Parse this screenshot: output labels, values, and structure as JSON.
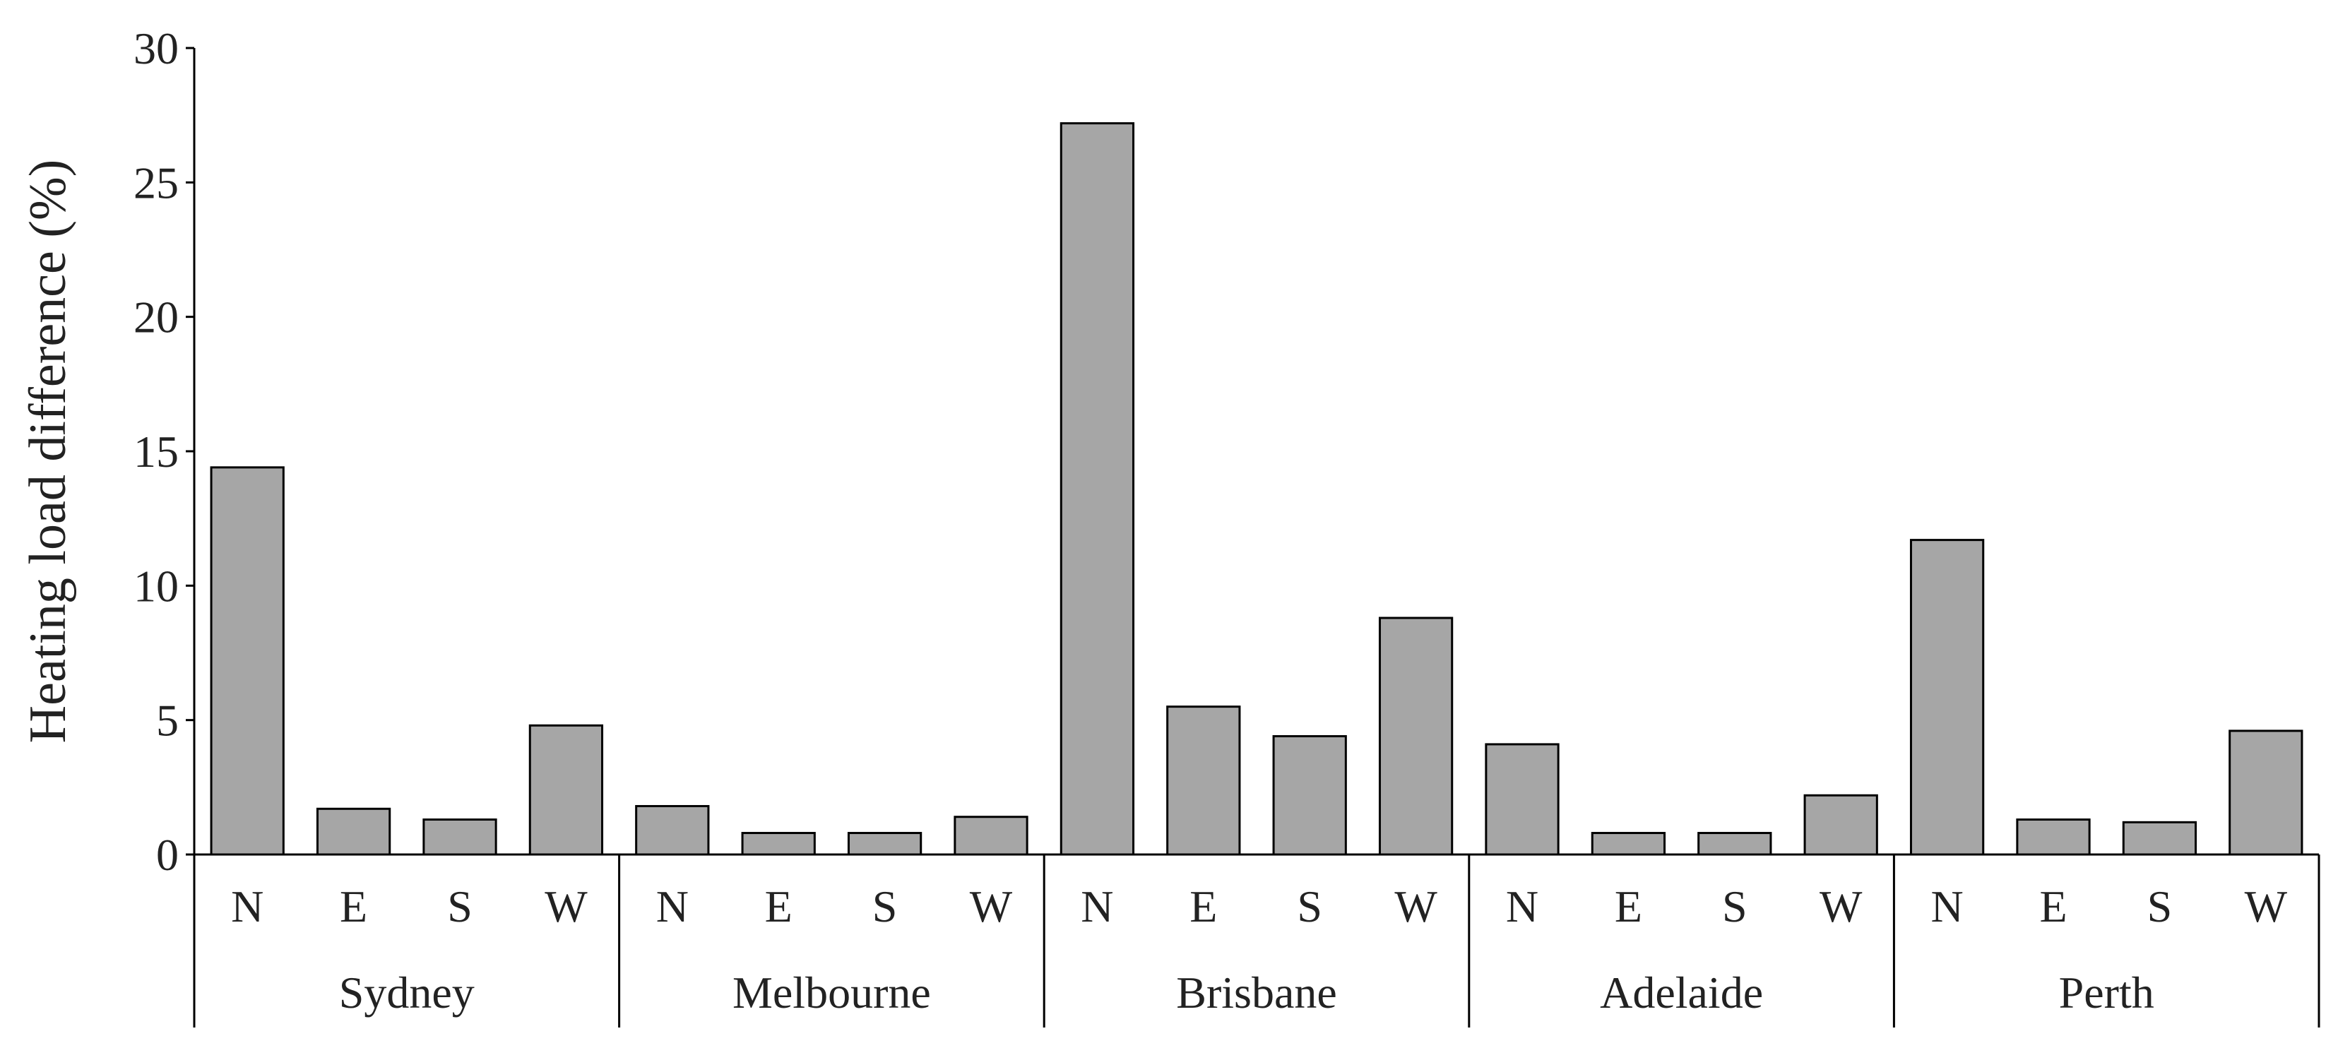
{
  "chart_data": {
    "type": "bar",
    "ylabel": "Heating load difference (%)",
    "ylim": [
      0,
      30
    ],
    "yticks": [
      0,
      5,
      10,
      15,
      20,
      25,
      30
    ],
    "grid": false,
    "legend": "none",
    "bar_color": "#a6a6a6",
    "bar_edge_color": "#000000",
    "orientations": [
      "N",
      "E",
      "S",
      "W"
    ],
    "groups": [
      {
        "name": "Sydney",
        "values": [
          14.4,
          1.7,
          1.3,
          4.8
        ]
      },
      {
        "name": "Melbourne",
        "values": [
          1.8,
          0.8,
          0.8,
          1.4
        ]
      },
      {
        "name": "Brisbane",
        "values": [
          27.2,
          5.5,
          4.4,
          8.8
        ]
      },
      {
        "name": "Adelaide",
        "values": [
          4.1,
          0.8,
          0.8,
          2.2
        ]
      },
      {
        "name": "Perth",
        "values": [
          11.7,
          1.3,
          1.2,
          4.6
        ]
      }
    ]
  }
}
